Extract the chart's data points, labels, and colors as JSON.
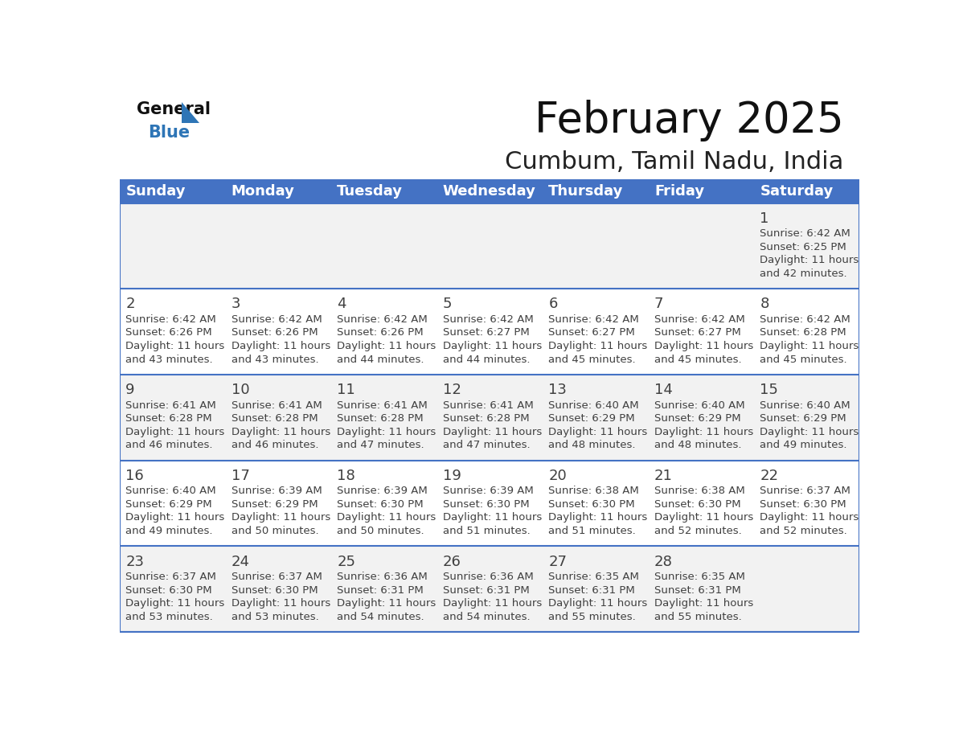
{
  "title": "February 2025",
  "subtitle": "Cumbum, Tamil Nadu, India",
  "header_bg": "#4472C4",
  "header_text_color": "#FFFFFF",
  "day_names": [
    "Sunday",
    "Monday",
    "Tuesday",
    "Wednesday",
    "Thursday",
    "Friday",
    "Saturday"
  ],
  "bg_color": "#FFFFFF",
  "cell_bg_row0": "#F2F2F2",
  "cell_bg_row1": "#FFFFFF",
  "cell_bg_row2": "#F2F2F2",
  "cell_bg_row3": "#FFFFFF",
  "cell_bg_row4": "#F2F2F2",
  "border_color": "#4472C4",
  "text_color": "#404040",
  "days": [
    {
      "day": 1,
      "col": 6,
      "row": 0,
      "sunrise": "6:42 AM",
      "sunset": "6:25 PM",
      "daylight_h": "11 hours",
      "daylight_m": "42 minutes."
    },
    {
      "day": 2,
      "col": 0,
      "row": 1,
      "sunrise": "6:42 AM",
      "sunset": "6:26 PM",
      "daylight_h": "11 hours",
      "daylight_m": "43 minutes."
    },
    {
      "day": 3,
      "col": 1,
      "row": 1,
      "sunrise": "6:42 AM",
      "sunset": "6:26 PM",
      "daylight_h": "11 hours",
      "daylight_m": "43 minutes."
    },
    {
      "day": 4,
      "col": 2,
      "row": 1,
      "sunrise": "6:42 AM",
      "sunset": "6:26 PM",
      "daylight_h": "11 hours",
      "daylight_m": "44 minutes."
    },
    {
      "day": 5,
      "col": 3,
      "row": 1,
      "sunrise": "6:42 AM",
      "sunset": "6:27 PM",
      "daylight_h": "11 hours",
      "daylight_m": "44 minutes."
    },
    {
      "day": 6,
      "col": 4,
      "row": 1,
      "sunrise": "6:42 AM",
      "sunset": "6:27 PM",
      "daylight_h": "11 hours",
      "daylight_m": "45 minutes."
    },
    {
      "day": 7,
      "col": 5,
      "row": 1,
      "sunrise": "6:42 AM",
      "sunset": "6:27 PM",
      "daylight_h": "11 hours",
      "daylight_m": "45 minutes."
    },
    {
      "day": 8,
      "col": 6,
      "row": 1,
      "sunrise": "6:42 AM",
      "sunset": "6:28 PM",
      "daylight_h": "11 hours",
      "daylight_m": "45 minutes."
    },
    {
      "day": 9,
      "col": 0,
      "row": 2,
      "sunrise": "6:41 AM",
      "sunset": "6:28 PM",
      "daylight_h": "11 hours",
      "daylight_m": "46 minutes."
    },
    {
      "day": 10,
      "col": 1,
      "row": 2,
      "sunrise": "6:41 AM",
      "sunset": "6:28 PM",
      "daylight_h": "11 hours",
      "daylight_m": "46 minutes."
    },
    {
      "day": 11,
      "col": 2,
      "row": 2,
      "sunrise": "6:41 AM",
      "sunset": "6:28 PM",
      "daylight_h": "11 hours",
      "daylight_m": "47 minutes."
    },
    {
      "day": 12,
      "col": 3,
      "row": 2,
      "sunrise": "6:41 AM",
      "sunset": "6:28 PM",
      "daylight_h": "11 hours",
      "daylight_m": "47 minutes."
    },
    {
      "day": 13,
      "col": 4,
      "row": 2,
      "sunrise": "6:40 AM",
      "sunset": "6:29 PM",
      "daylight_h": "11 hours",
      "daylight_m": "48 minutes."
    },
    {
      "day": 14,
      "col": 5,
      "row": 2,
      "sunrise": "6:40 AM",
      "sunset": "6:29 PM",
      "daylight_h": "11 hours",
      "daylight_m": "48 minutes."
    },
    {
      "day": 15,
      "col": 6,
      "row": 2,
      "sunrise": "6:40 AM",
      "sunset": "6:29 PM",
      "daylight_h": "11 hours",
      "daylight_m": "49 minutes."
    },
    {
      "day": 16,
      "col": 0,
      "row": 3,
      "sunrise": "6:40 AM",
      "sunset": "6:29 PM",
      "daylight_h": "11 hours",
      "daylight_m": "49 minutes."
    },
    {
      "day": 17,
      "col": 1,
      "row": 3,
      "sunrise": "6:39 AM",
      "sunset": "6:29 PM",
      "daylight_h": "11 hours",
      "daylight_m": "50 minutes."
    },
    {
      "day": 18,
      "col": 2,
      "row": 3,
      "sunrise": "6:39 AM",
      "sunset": "6:30 PM",
      "daylight_h": "11 hours",
      "daylight_m": "50 minutes."
    },
    {
      "day": 19,
      "col": 3,
      "row": 3,
      "sunrise": "6:39 AM",
      "sunset": "6:30 PM",
      "daylight_h": "11 hours",
      "daylight_m": "51 minutes."
    },
    {
      "day": 20,
      "col": 4,
      "row": 3,
      "sunrise": "6:38 AM",
      "sunset": "6:30 PM",
      "daylight_h": "11 hours",
      "daylight_m": "51 minutes."
    },
    {
      "day": 21,
      "col": 5,
      "row": 3,
      "sunrise": "6:38 AM",
      "sunset": "6:30 PM",
      "daylight_h": "11 hours",
      "daylight_m": "52 minutes."
    },
    {
      "day": 22,
      "col": 6,
      "row": 3,
      "sunrise": "6:37 AM",
      "sunset": "6:30 PM",
      "daylight_h": "11 hours",
      "daylight_m": "52 minutes."
    },
    {
      "day": 23,
      "col": 0,
      "row": 4,
      "sunrise": "6:37 AM",
      "sunset": "6:30 PM",
      "daylight_h": "11 hours",
      "daylight_m": "53 minutes."
    },
    {
      "day": 24,
      "col": 1,
      "row": 4,
      "sunrise": "6:37 AM",
      "sunset": "6:30 PM",
      "daylight_h": "11 hours",
      "daylight_m": "53 minutes."
    },
    {
      "day": 25,
      "col": 2,
      "row": 4,
      "sunrise": "6:36 AM",
      "sunset": "6:31 PM",
      "daylight_h": "11 hours",
      "daylight_m": "54 minutes."
    },
    {
      "day": 26,
      "col": 3,
      "row": 4,
      "sunrise": "6:36 AM",
      "sunset": "6:31 PM",
      "daylight_h": "11 hours",
      "daylight_m": "54 minutes."
    },
    {
      "day": 27,
      "col": 4,
      "row": 4,
      "sunrise": "6:35 AM",
      "sunset": "6:31 PM",
      "daylight_h": "11 hours",
      "daylight_m": "55 minutes."
    },
    {
      "day": 28,
      "col": 5,
      "row": 4,
      "sunrise": "6:35 AM",
      "sunset": "6:31 PM",
      "daylight_h": "11 hours",
      "daylight_m": "55 minutes."
    }
  ],
  "num_rows": 5,
  "num_cols": 7,
  "logo_triangle_color": "#2E75B6",
  "title_fontsize": 38,
  "subtitle_fontsize": 22,
  "header_fontsize": 13,
  "day_num_fontsize": 13,
  "cell_fontsize": 9.5
}
